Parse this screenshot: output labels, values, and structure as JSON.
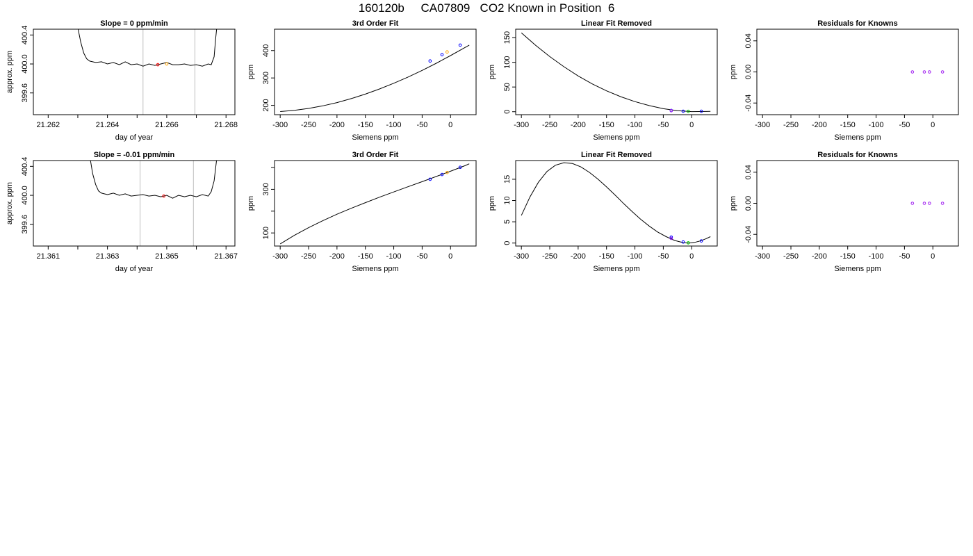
{
  "page": {
    "title": "160120b     CA07809   CO2 Known in Position  6"
  },
  "colors": {
    "line": "#000000",
    "gridline": "#bebebe",
    "point_blue": "#0000ff",
    "point_purple": "#a020f0",
    "point_green": "#00cd00",
    "point_red": "#ff0000",
    "point_orange": "#ffa500"
  },
  "chart_data": [
    {
      "type": "line",
      "title": "Slope =  0  ppm/min",
      "xlabel": "day of year",
      "ylabel": "approx. ppm",
      "xlim": [
        21.2615,
        21.2683
      ],
      "ylim": [
        399.3,
        400.48
      ],
      "xticks": [
        21.262,
        21.263,
        21.264,
        21.265,
        21.266,
        21.267,
        21.268
      ],
      "xtick_labels": [
        "21.262",
        "",
        "21.264",
        "",
        "21.266",
        "",
        "21.268"
      ],
      "yticks": [
        399.6,
        400.0,
        400.4
      ],
      "ytick_labels": [
        "399.6",
        "400.0",
        "400.4"
      ],
      "vlines": [
        21.2652,
        21.26695
      ],
      "series": [
        {
          "x": [
            21.263,
            21.2631,
            21.2632,
            21.2633,
            21.2634,
            21.2635,
            21.2636,
            21.2638,
            21.264,
            21.2642,
            21.2644,
            21.2646,
            21.2648,
            21.265,
            21.2652,
            21.2654,
            21.2656,
            21.2658,
            21.266,
            21.2662,
            21.2664,
            21.2666,
            21.2668,
            21.267,
            21.2672,
            21.2674,
            21.2675,
            21.2676,
            21.26765,
            21.2677
          ],
          "y": [
            400.5,
            400.3,
            400.15,
            400.07,
            400.04,
            400.03,
            400.02,
            400.03,
            400.0,
            400.02,
            399.99,
            400.03,
            399.99,
            400.0,
            399.97,
            400.0,
            399.98,
            400.0,
            400.02,
            399.99,
            399.99,
            400.0,
            399.98,
            399.99,
            399.97,
            400.0,
            399.99,
            400.1,
            400.35,
            400.55
          ]
        }
      ],
      "points": [
        {
          "x": 21.2657,
          "y": 399.99,
          "color": "#ff0000"
        },
        {
          "x": 21.266,
          "y": 400.0,
          "color": "#ffa500"
        }
      ]
    },
    {
      "type": "line",
      "title": "3rd Order Fit",
      "xlabel": "Siemens ppm",
      "ylabel": "ppm",
      "xlim": [
        -310,
        45
      ],
      "ylim": [
        166,
        478
      ],
      "xticks": [
        -300,
        -250,
        -200,
        -150,
        -100,
        -50,
        0
      ],
      "xtick_labels": [
        "-300",
        "-250",
        "-200",
        "-150",
        "-100",
        "-50",
        "0"
      ],
      "yticks": [
        200,
        300,
        400
      ],
      "ytick_labels": [
        "200",
        "300",
        "400"
      ],
      "series": [
        {
          "x": [
            -300,
            -275,
            -250,
            -225,
            -200,
            -175,
            -150,
            -125,
            -100,
            -75,
            -50,
            -25,
            0,
            25,
            33
          ],
          "y": [
            177.3,
            181.6,
            188.8,
            198.3,
            210.2,
            224.6,
            241.1,
            259.9,
            280.6,
            303.2,
            327.6,
            353.8,
            381.5,
            410.5,
            420.0
          ]
        }
      ],
      "points": [
        {
          "x": -36,
          "y": 362,
          "color": "#0000ff"
        },
        {
          "x": -15,
          "y": 385,
          "color": "#0000ff"
        },
        {
          "x": -6,
          "y": 395,
          "color": "#ffa500"
        },
        {
          "x": 17,
          "y": 420,
          "color": "#0000ff"
        }
      ]
    },
    {
      "type": "line",
      "title": "Linear Fit Removed",
      "xlabel": "Siemens ppm",
      "ylabel": "ppm",
      "xlim": [
        -310,
        45
      ],
      "ylim": [
        -6,
        167
      ],
      "xticks": [
        -300,
        -250,
        -200,
        -150,
        -100,
        -50,
        0
      ],
      "xtick_labels": [
        "-300",
        "-250",
        "-200",
        "-150",
        "-100",
        "-50",
        "0"
      ],
      "yticks": [
        0,
        50,
        100,
        150
      ],
      "ytick_labels": [
        "0",
        "50",
        "100",
        "150"
      ],
      "series": [
        {
          "x": [
            -300,
            -275,
            -250,
            -225,
            -200,
            -175,
            -150,
            -125,
            -100,
            -75,
            -50,
            -25,
            0,
            25,
            33
          ],
          "y": [
            159.5,
            134.5,
            111.6,
            91.0,
            72.3,
            56.2,
            42.2,
            30.4,
            20.4,
            12.4,
            6.1,
            2.1,
            0.2,
            0.4,
            0.8
          ]
        }
      ],
      "points": [
        {
          "x": -36,
          "y": 2.5,
          "color": "#0000ff"
        },
        {
          "x": -36,
          "y": 2.0,
          "color": "#a020f0"
        },
        {
          "x": -15,
          "y": 1.0,
          "color": "#0000ff"
        },
        {
          "x": -6,
          "y": 0.8,
          "color": "#00cd00"
        },
        {
          "x": 17,
          "y": 1.0,
          "color": "#0000ff"
        }
      ]
    },
    {
      "type": "scatter",
      "title": "Residuals for Knowns",
      "xlabel": "Siemens ppm",
      "ylabel": "ppm",
      "xlim": [
        -310,
        45
      ],
      "ylim": [
        -0.055,
        0.055
      ],
      "xticks": [
        -300,
        -250,
        -200,
        -150,
        -100,
        -50,
        0
      ],
      "xtick_labels": [
        "-300",
        "-250",
        "-200",
        "-150",
        "-100",
        "-50",
        "0"
      ],
      "yticks": [
        -0.04,
        0.0,
        0.04
      ],
      "ytick_labels": [
        "-0.04",
        "0.00",
        "0.04"
      ],
      "series": [],
      "points": [
        {
          "x": -36,
          "y": 0,
          "color": "#a020f0"
        },
        {
          "x": -15,
          "y": 0,
          "color": "#a020f0"
        },
        {
          "x": -6,
          "y": 0,
          "color": "#a020f0"
        },
        {
          "x": 17,
          "y": 0,
          "color": "#a020f0"
        }
      ]
    },
    {
      "type": "line",
      "title": "Slope =  -0.01  ppm/min",
      "xlabel": "day of year",
      "ylabel": "approx. ppm",
      "xlim": [
        21.3605,
        21.3673
      ],
      "ylim": [
        399.3,
        400.48
      ],
      "xticks": [
        21.361,
        21.362,
        21.363,
        21.364,
        21.365,
        21.366,
        21.367
      ],
      "xtick_labels": [
        "21.361",
        "",
        "21.363",
        "",
        "21.365",
        "",
        "21.367"
      ],
      "yticks": [
        399.6,
        400.0,
        400.4
      ],
      "ytick_labels": [
        "399.6",
        "400.0",
        "400.4"
      ],
      "vlines": [
        21.3641,
        21.3659
      ],
      "series": [
        {
          "x": [
            21.3624,
            21.3625,
            21.3626,
            21.3627,
            21.3628,
            21.363,
            21.3632,
            21.3634,
            21.3636,
            21.3638,
            21.364,
            21.3642,
            21.3644,
            21.3646,
            21.3648,
            21.365,
            21.3652,
            21.3654,
            21.3656,
            21.3658,
            21.366,
            21.3662,
            21.3664,
            21.3665,
            21.3666,
            21.36665,
            21.3667
          ],
          "y": [
            400.55,
            400.3,
            400.15,
            400.06,
            400.03,
            400.01,
            400.03,
            400.0,
            400.02,
            399.99,
            400.0,
            400.01,
            399.99,
            400.0,
            399.98,
            400.0,
            399.96,
            400.0,
            399.98,
            400.0,
            399.98,
            400.01,
            399.99,
            400.05,
            400.2,
            400.38,
            400.55
          ]
        }
      ],
      "points": [
        {
          "x": 21.3649,
          "y": 399.99,
          "color": "#ff0000"
        }
      ]
    },
    {
      "type": "line",
      "title": "3rd Order Fit",
      "xlabel": "Siemens ppm",
      "ylabel": "ppm",
      "xlim": [
        -310,
        45
      ],
      "ylim": [
        40,
        432
      ],
      "xticks": [
        -300,
        -250,
        -200,
        -150,
        -100,
        -50,
        0
      ],
      "xtick_labels": [
        "-300",
        "-250",
        "-200",
        "-150",
        "-100",
        "-50",
        "0"
      ],
      "yticks": [
        100,
        300
      ],
      "ytick_labels": [
        "100",
        "300"
      ],
      "minor_yticks": [
        200,
        400
      ],
      "series": [
        {
          "x": [
            -300,
            -275,
            -250,
            -225,
            -200,
            -175,
            -150,
            -125,
            -100,
            -75,
            -50,
            -25,
            0,
            25,
            33
          ],
          "y": [
            50,
            89,
            124,
            156,
            186,
            213,
            239,
            264,
            288,
            312,
            335,
            359,
            383,
            408,
            417
          ]
        }
      ],
      "points": [
        {
          "x": -36,
          "y": 346,
          "color": "#0000ff"
        },
        {
          "x": -15,
          "y": 368,
          "color": "#0000ff"
        },
        {
          "x": -6,
          "y": 377,
          "color": "#ffa500"
        },
        {
          "x": 17,
          "y": 401,
          "color": "#0000ff"
        }
      ]
    },
    {
      "type": "line",
      "title": "Linear Fit Removed",
      "xlabel": "Siemens ppm",
      "ylabel": "ppm",
      "xlim": [
        -310,
        45
      ],
      "ylim": [
        -0.7,
        19.4
      ],
      "xticks": [
        -300,
        -250,
        -200,
        -150,
        -100,
        -50,
        0
      ],
      "xtick_labels": [
        "-300",
        "-250",
        "-200",
        "-150",
        "-100",
        "-50",
        "0"
      ],
      "yticks": [
        0,
        5,
        10,
        15
      ],
      "ytick_labels": [
        "0",
        "5",
        "10",
        "15"
      ],
      "series": [
        {
          "x": [
            -300,
            -285,
            -270,
            -255,
            -240,
            -225,
            -210,
            -195,
            -180,
            -165,
            -150,
            -135,
            -120,
            -105,
            -90,
            -75,
            -60,
            -45,
            -30,
            -15,
            -5,
            5,
            15,
            25,
            33
          ],
          "y": [
            6.5,
            10.8,
            14.3,
            16.8,
            18.3,
            18.9,
            18.7,
            17.9,
            16.6,
            15.0,
            13.2,
            11.3,
            9.3,
            7.4,
            5.6,
            4.0,
            2.6,
            1.5,
            0.6,
            0.1,
            0.0,
            0.15,
            0.5,
            1.0,
            1.5
          ]
        }
      ],
      "points": [
        {
          "x": -36,
          "y": 1.4,
          "color": "#0000ff"
        },
        {
          "x": -36,
          "y": 1.1,
          "color": "#a020f0"
        },
        {
          "x": -15,
          "y": 0.25,
          "color": "#0000ff"
        },
        {
          "x": -6,
          "y": 0.05,
          "color": "#00cd00"
        },
        {
          "x": 17,
          "y": 0.5,
          "color": "#0000ff"
        }
      ]
    },
    {
      "type": "scatter",
      "title": "Residuals for Knowns",
      "xlabel": "Siemens ppm",
      "ylabel": "ppm",
      "xlim": [
        -310,
        45
      ],
      "ylim": [
        -0.055,
        0.055
      ],
      "xticks": [
        -300,
        -250,
        -200,
        -150,
        -100,
        -50,
        0
      ],
      "xtick_labels": [
        "-300",
        "-250",
        "-200",
        "-150",
        "-100",
        "-50",
        "0"
      ],
      "yticks": [
        -0.04,
        0.0,
        0.04
      ],
      "ytick_labels": [
        "-0.04",
        "0.00",
        "0.04"
      ],
      "series": [],
      "points": [
        {
          "x": -36,
          "y": 0,
          "color": "#a020f0"
        },
        {
          "x": -15,
          "y": 0,
          "color": "#a020f0"
        },
        {
          "x": -6,
          "y": 0,
          "color": "#a020f0"
        },
        {
          "x": 17,
          "y": 0,
          "color": "#a020f0"
        }
      ]
    }
  ]
}
